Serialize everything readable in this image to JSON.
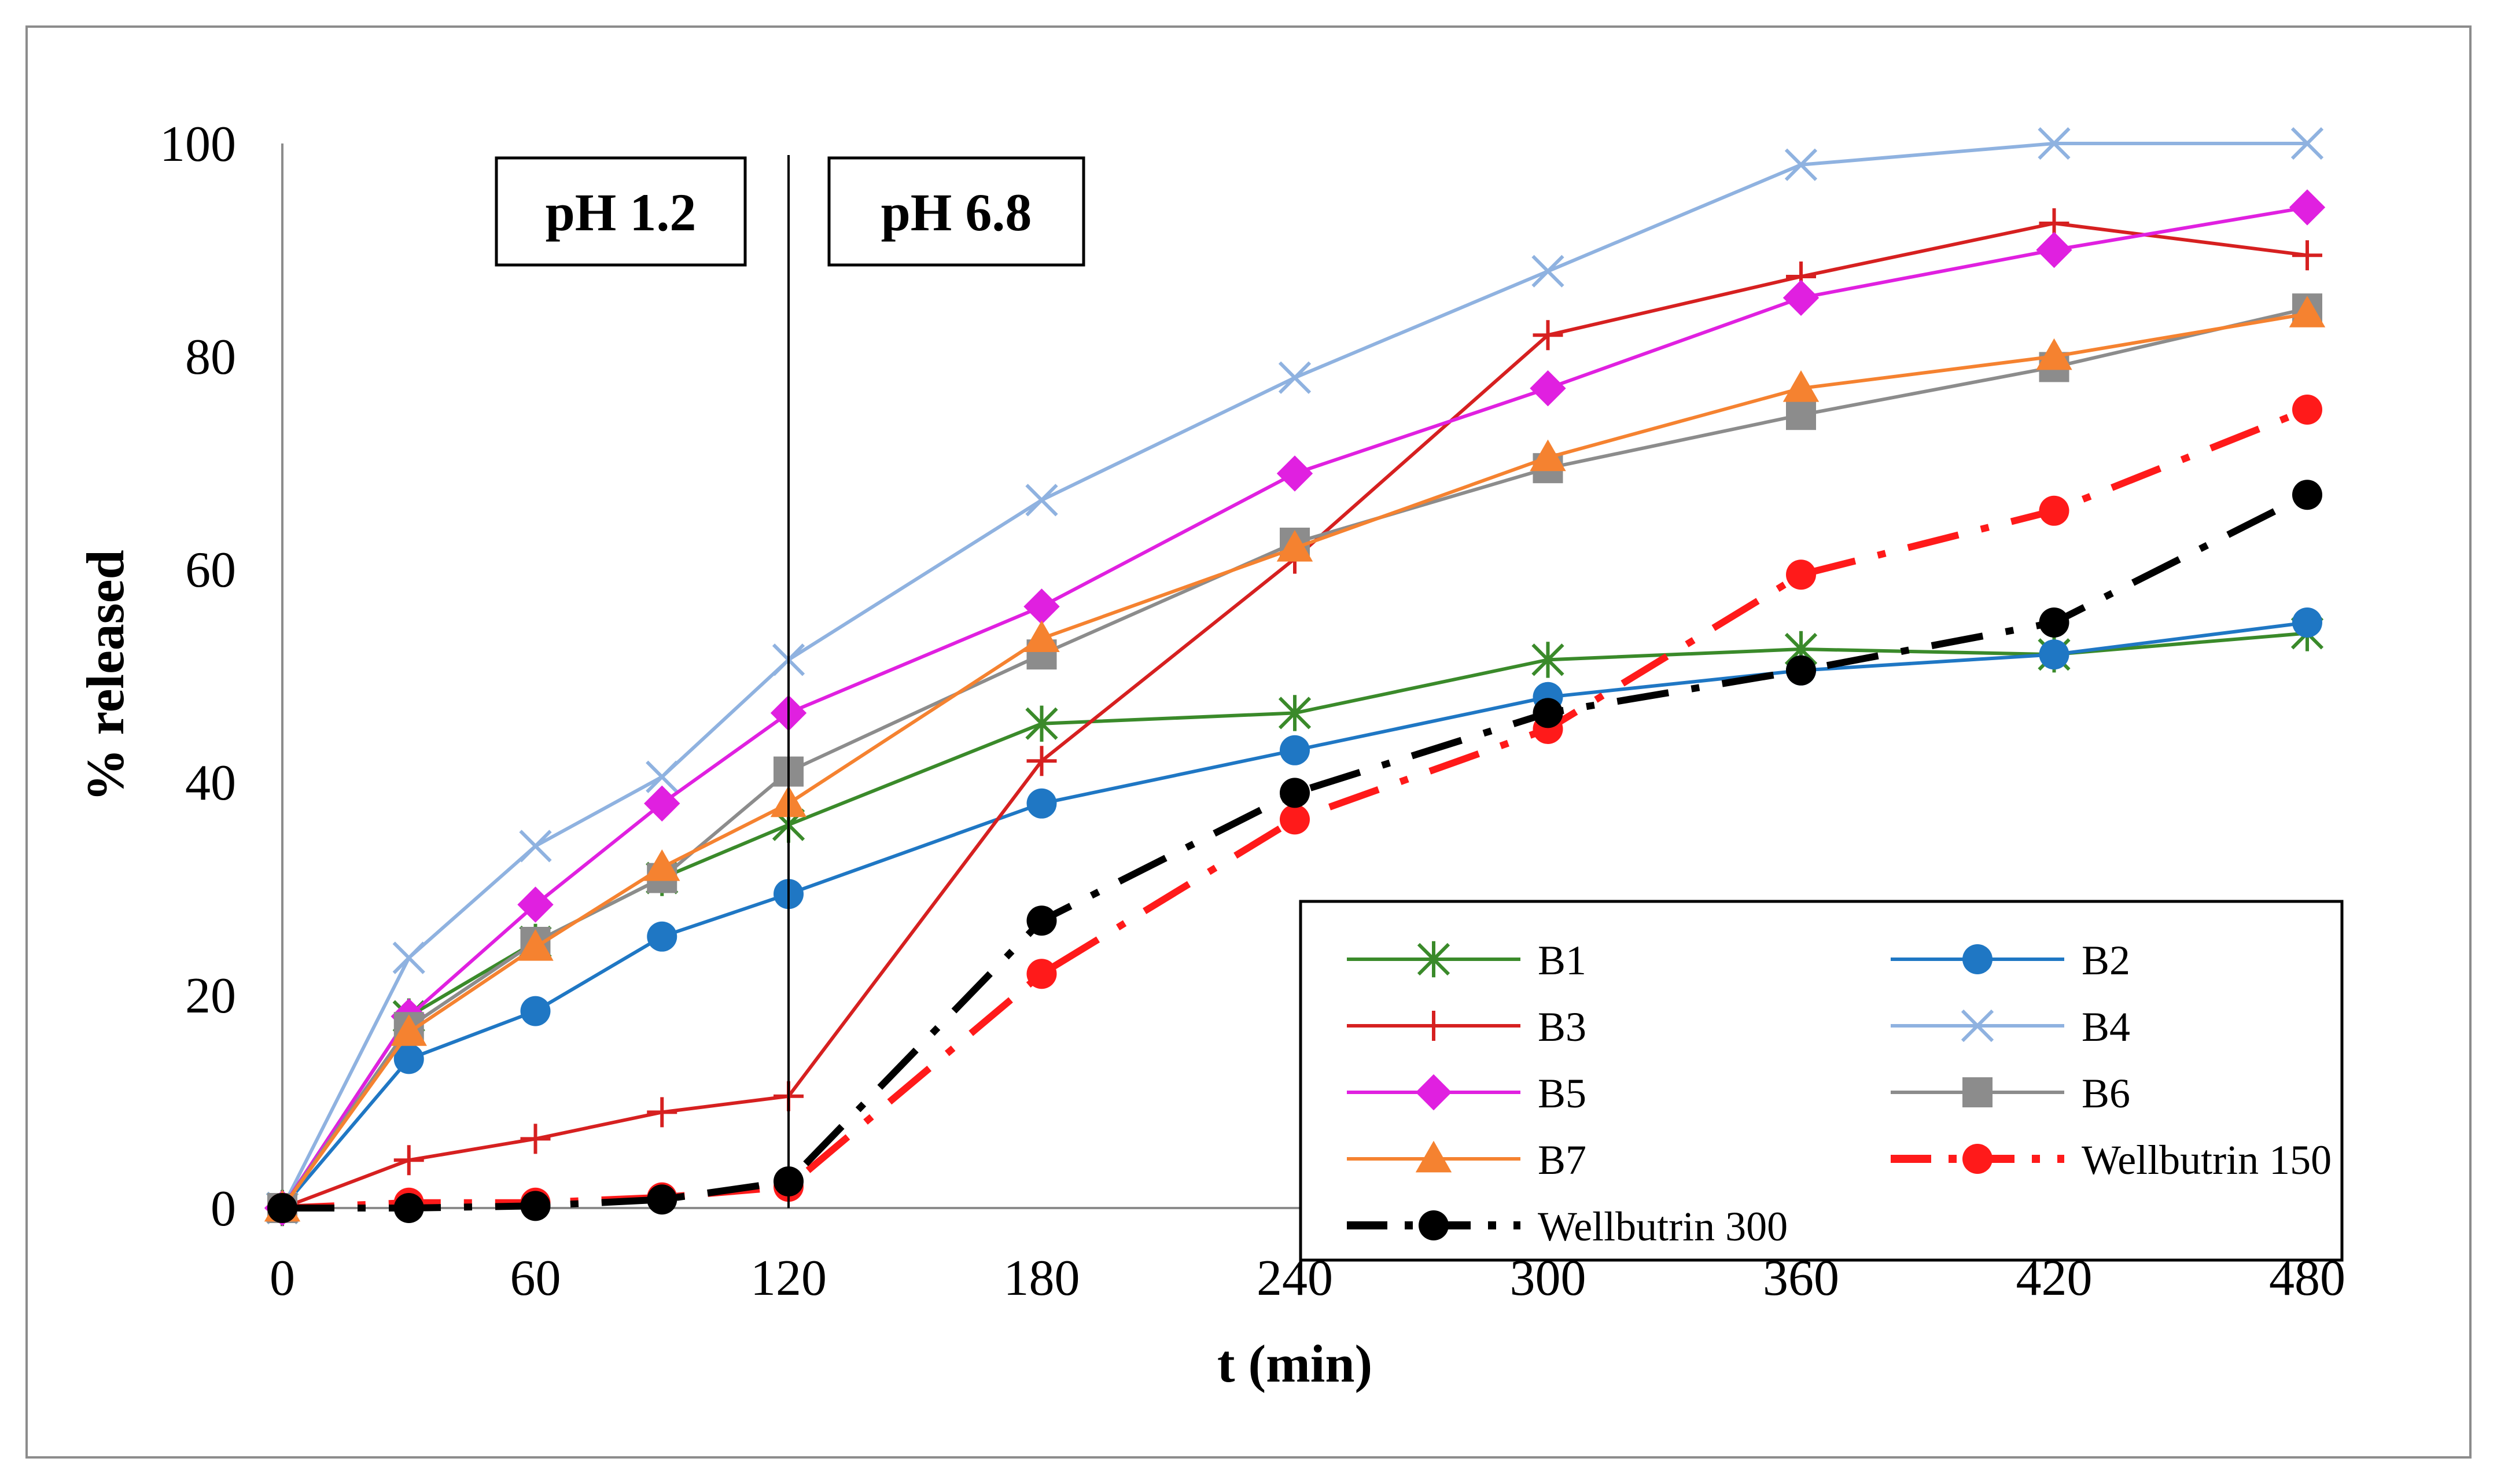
{
  "chart_data": {
    "type": "line",
    "title": "",
    "xlabel": "t (min)",
    "ylabel": "% released",
    "xlim": [
      0,
      480
    ],
    "ylim": [
      0,
      100
    ],
    "x_categories": [
      "0",
      "30",
      "60",
      "90",
      "120",
      "180",
      "240",
      "300",
      "360",
      "420",
      "480"
    ],
    "x_tick_labels": [
      "0",
      "60",
      "120",
      "180",
      "240",
      "300",
      "360",
      "420",
      "480"
    ],
    "y_tick_labels": [
      "0",
      "20",
      "40",
      "60",
      "80",
      "100"
    ],
    "phase_line_at": "120",
    "annotations": [
      "pH 1.2",
      "pH 6.8"
    ],
    "series": [
      {
        "name": "B1",
        "color": "#3a8a2a",
        "marker": "star",
        "dash": "solid",
        "values": [
          0,
          18,
          25,
          31,
          36,
          45.5,
          46.5,
          51.5,
          52.5,
          52,
          54
        ]
      },
      {
        "name": "B2",
        "color": "#1f77c4",
        "marker": "circle",
        "dash": "solid",
        "values": [
          0,
          14,
          18.5,
          25.5,
          29.5,
          38,
          43,
          48,
          50.5,
          52,
          55
        ]
      },
      {
        "name": "B3",
        "color": "#d62020",
        "marker": "plus",
        "dash": "solid",
        "values": [
          0,
          4.5,
          6.5,
          9,
          10.5,
          42,
          61,
          82,
          87.5,
          92.5,
          89.5
        ]
      },
      {
        "name": "B4",
        "color": "#8fb2e0",
        "marker": "x",
        "dash": "solid",
        "values": [
          0,
          23.5,
          34,
          40.5,
          51.5,
          66.5,
          78,
          88,
          98,
          100,
          100
        ]
      },
      {
        "name": "B5",
        "color": "#e020e0",
        "marker": "diamond",
        "dash": "solid",
        "values": [
          0,
          18,
          28.5,
          38,
          46.5,
          56.5,
          69,
          77,
          85.5,
          90,
          94
        ]
      },
      {
        "name": "B6",
        "color": "#8c8c8c",
        "marker": "square",
        "dash": "solid",
        "values": [
          0,
          17,
          25,
          31,
          41,
          52,
          62.5,
          69.5,
          74.5,
          79,
          84.5
        ]
      },
      {
        "name": "B7",
        "color": "#f58230",
        "marker": "triangle",
        "dash": "solid",
        "values": [
          0,
          16.5,
          24.5,
          32,
          38,
          53.5,
          62,
          70.5,
          77,
          80,
          84
        ]
      },
      {
        "name": "Wellbutrin 150",
        "color": "#ff1a1a",
        "marker": "circle",
        "dash": "dashdot",
        "values": [
          0,
          0.5,
          0.5,
          1,
          2,
          22,
          36.5,
          45,
          59.5,
          65.5,
          75
        ]
      },
      {
        "name": "Wellbutrin 300",
        "color": "#000000",
        "marker": "circle",
        "dash": "dashdot",
        "values": [
          0,
          0,
          0.2,
          0.8,
          2.5,
          27,
          39,
          46.5,
          50.5,
          55,
          67
        ]
      }
    ],
    "legend": "bottom-right"
  }
}
